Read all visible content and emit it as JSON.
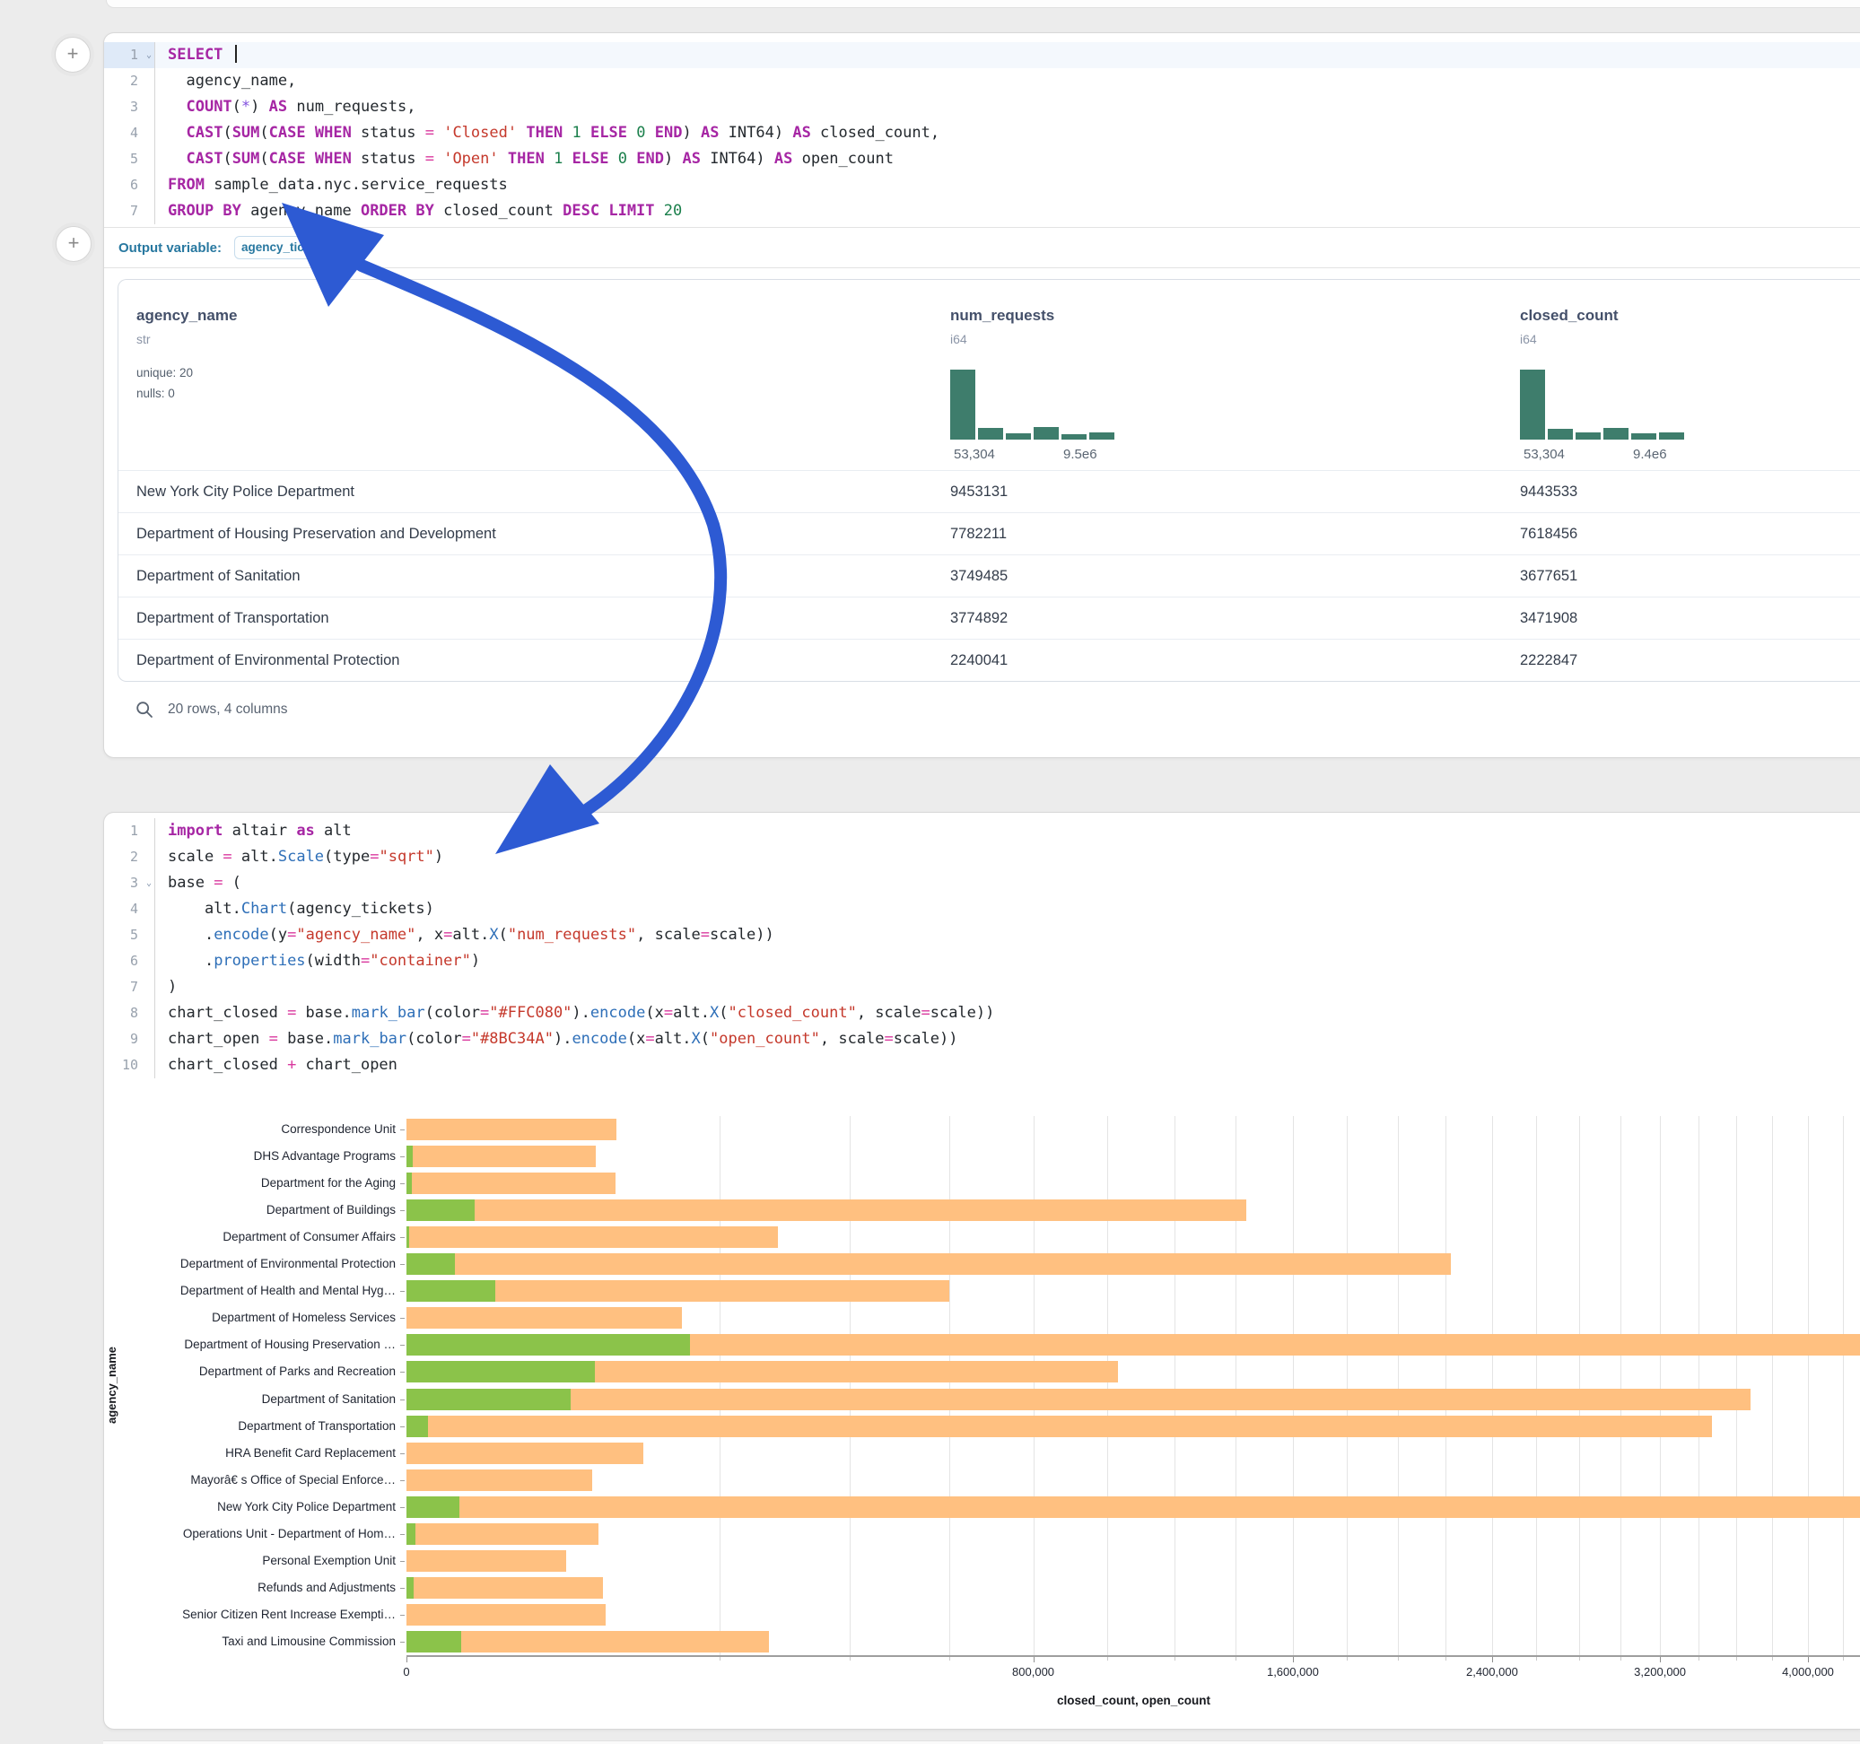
{
  "colors": {
    "arrow_blue": "#2d5ad3",
    "hist_green": "#3e7d6c",
    "closed_bar_orange": "#FFC080",
    "open_bar_green": "#8BC34A"
  },
  "sql_cell": {
    "add_cell_button": "+",
    "lines": [
      {
        "n": "1",
        "chev": true,
        "active": true,
        "caret": true,
        "tokens": [
          [
            "kw",
            "SELECT"
          ],
          [
            "txt",
            " "
          ]
        ]
      },
      {
        "n": "2",
        "tokens": [
          [
            "txt",
            "  agency_name,"
          ]
        ]
      },
      {
        "n": "3",
        "tokens": [
          [
            "txt",
            "  "
          ],
          [
            "kw",
            "COUNT"
          ],
          [
            "txt",
            "("
          ],
          [
            "st",
            "*"
          ],
          [
            "txt",
            ") "
          ],
          [
            "kw",
            "AS"
          ],
          [
            "txt",
            " num_requests,"
          ]
        ]
      },
      {
        "n": "4",
        "tokens": [
          [
            "txt",
            "  "
          ],
          [
            "kw",
            "CAST"
          ],
          [
            "txt",
            "("
          ],
          [
            "kw",
            "SUM"
          ],
          [
            "txt",
            "("
          ],
          [
            "kw",
            "CASE"
          ],
          [
            "txt",
            " "
          ],
          [
            "kw",
            "WHEN"
          ],
          [
            "txt",
            " status "
          ],
          [
            "op",
            "="
          ],
          [
            "txt",
            " "
          ],
          [
            "str",
            "'Closed'"
          ],
          [
            "txt",
            " "
          ],
          [
            "kw",
            "THEN"
          ],
          [
            "txt",
            " "
          ],
          [
            "num",
            "1"
          ],
          [
            "txt",
            " "
          ],
          [
            "kw",
            "ELSE"
          ],
          [
            "txt",
            " "
          ],
          [
            "num",
            "0"
          ],
          [
            "txt",
            " "
          ],
          [
            "kw",
            "END"
          ],
          [
            "txt",
            ") "
          ],
          [
            "kw",
            "AS"
          ],
          [
            "txt",
            " INT64) "
          ],
          [
            "kw",
            "AS"
          ],
          [
            "txt",
            " closed_count,"
          ]
        ]
      },
      {
        "n": "5",
        "tokens": [
          [
            "txt",
            "  "
          ],
          [
            "kw",
            "CAST"
          ],
          [
            "txt",
            "("
          ],
          [
            "kw",
            "SUM"
          ],
          [
            "txt",
            "("
          ],
          [
            "kw",
            "CASE"
          ],
          [
            "txt",
            " "
          ],
          [
            "kw",
            "WHEN"
          ],
          [
            "txt",
            " status "
          ],
          [
            "op",
            "="
          ],
          [
            "txt",
            " "
          ],
          [
            "str",
            "'Open'"
          ],
          [
            "txt",
            " "
          ],
          [
            "kw",
            "THEN"
          ],
          [
            "txt",
            " "
          ],
          [
            "num",
            "1"
          ],
          [
            "txt",
            " "
          ],
          [
            "kw",
            "ELSE"
          ],
          [
            "txt",
            " "
          ],
          [
            "num",
            "0"
          ],
          [
            "txt",
            " "
          ],
          [
            "kw",
            "END"
          ],
          [
            "txt",
            ") "
          ],
          [
            "kw",
            "AS"
          ],
          [
            "txt",
            " INT64) "
          ],
          [
            "kw",
            "AS"
          ],
          [
            "txt",
            " open_count"
          ]
        ]
      },
      {
        "n": "6",
        "tokens": [
          [
            "kw",
            "FROM"
          ],
          [
            "txt",
            " sample_data.nyc.service_requests"
          ]
        ]
      },
      {
        "n": "7",
        "tokens": [
          [
            "kw",
            "GROUP BY"
          ],
          [
            "txt",
            " agency_name "
          ],
          [
            "kw",
            "ORDER BY"
          ],
          [
            "txt",
            " closed_count "
          ],
          [
            "kw",
            "DESC"
          ],
          [
            "txt",
            " "
          ],
          [
            "kw",
            "LIMIT"
          ],
          [
            "txt",
            " "
          ],
          [
            "num",
            "20"
          ]
        ]
      }
    ],
    "output_variable_label": "Output variable:",
    "output_variable_value": "agency_tickets"
  },
  "table": {
    "columns": [
      {
        "name": "agency_name",
        "type": "str",
        "meta": [
          "unique: 20",
          "nulls: 0"
        ]
      },
      {
        "name": "num_requests",
        "type": "i64",
        "hist": {
          "bars": [
            1,
            0.17,
            0.09,
            0.18,
            0.08,
            0.1
          ],
          "labels": [
            "53,304",
            "9.5e6"
          ]
        }
      },
      {
        "name": "closed_count",
        "type": "i64",
        "hist": {
          "bars": [
            1,
            0.16,
            0.1,
            0.17,
            0.09,
            0.1
          ],
          "labels": [
            "53,304",
            "9.4e6"
          ]
        }
      }
    ],
    "rows": [
      [
        "New York City Police Department",
        "9453131",
        "9443533"
      ],
      [
        "Department of Housing Preservation and Development",
        "7782211",
        "7618456"
      ],
      [
        "Department of Sanitation",
        "3749485",
        "3677651"
      ],
      [
        "Department of Transportation",
        "3774892",
        "3471908"
      ],
      [
        "Department of Environmental Protection",
        "2240041",
        "2222847"
      ]
    ],
    "footer": "20 rows, 4 columns"
  },
  "python_cell": {
    "lines": [
      {
        "n": "1",
        "tokens": [
          [
            "kw",
            "import"
          ],
          [
            "txt",
            " altair "
          ],
          [
            "kw",
            "as"
          ],
          [
            "txt",
            " alt"
          ]
        ]
      },
      {
        "n": "2",
        "tokens": [
          [
            "txt",
            "scale "
          ],
          [
            "op",
            "="
          ],
          [
            "txt",
            " alt."
          ],
          [
            "fn",
            "Scale"
          ],
          [
            "txt",
            "(type"
          ],
          [
            "op",
            "="
          ],
          [
            "str",
            "\"sqrt\""
          ],
          [
            "txt",
            ")"
          ]
        ]
      },
      {
        "n": "3",
        "chev": true,
        "tokens": [
          [
            "txt",
            "base "
          ],
          [
            "op",
            "="
          ],
          [
            "txt",
            " ("
          ]
        ]
      },
      {
        "n": "4",
        "tokens": [
          [
            "txt",
            "    alt."
          ],
          [
            "fn",
            "Chart"
          ],
          [
            "txt",
            "(agency_tickets)"
          ]
        ]
      },
      {
        "n": "5",
        "tokens": [
          [
            "txt",
            "    ."
          ],
          [
            "fn",
            "encode"
          ],
          [
            "txt",
            "(y"
          ],
          [
            "op",
            "="
          ],
          [
            "str",
            "\"agency_name\""
          ],
          [
            "txt",
            ", x"
          ],
          [
            "op",
            "="
          ],
          [
            "txt",
            "alt."
          ],
          [
            "fn",
            "X"
          ],
          [
            "txt",
            "("
          ],
          [
            "str",
            "\"num_requests\""
          ],
          [
            "txt",
            ", scale"
          ],
          [
            "op",
            "="
          ],
          [
            "txt",
            "scale))"
          ]
        ]
      },
      {
        "n": "6",
        "tokens": [
          [
            "txt",
            "    ."
          ],
          [
            "fn",
            "properties"
          ],
          [
            "txt",
            "(width"
          ],
          [
            "op",
            "="
          ],
          [
            "str",
            "\"container\""
          ],
          [
            "txt",
            ")"
          ]
        ]
      },
      {
        "n": "7",
        "tokens": [
          [
            "txt",
            ")"
          ]
        ]
      },
      {
        "n": "8",
        "tokens": [
          [
            "txt",
            "chart_closed "
          ],
          [
            "op",
            "="
          ],
          [
            "txt",
            " base."
          ],
          [
            "fn",
            "mark_bar"
          ],
          [
            "txt",
            "(color"
          ],
          [
            "op",
            "="
          ],
          [
            "str",
            "\"#FFC080\""
          ],
          [
            "txt",
            ")."
          ],
          [
            "fn",
            "encode"
          ],
          [
            "txt",
            "(x"
          ],
          [
            "op",
            "="
          ],
          [
            "txt",
            "alt."
          ],
          [
            "fn",
            "X"
          ],
          [
            "txt",
            "("
          ],
          [
            "str",
            "\"closed_count\""
          ],
          [
            "txt",
            ", scale"
          ],
          [
            "op",
            "="
          ],
          [
            "txt",
            "scale))"
          ]
        ]
      },
      {
        "n": "9",
        "tokens": [
          [
            "txt",
            "chart_open "
          ],
          [
            "op",
            "="
          ],
          [
            "txt",
            " base."
          ],
          [
            "fn",
            "mark_bar"
          ],
          [
            "txt",
            "(color"
          ],
          [
            "op",
            "="
          ],
          [
            "str",
            "\"#8BC34A\""
          ],
          [
            "txt",
            ")."
          ],
          [
            "fn",
            "encode"
          ],
          [
            "txt",
            "(x"
          ],
          [
            "op",
            "="
          ],
          [
            "txt",
            "alt."
          ],
          [
            "fn",
            "X"
          ],
          [
            "txt",
            "("
          ],
          [
            "str",
            "\"open_count\""
          ],
          [
            "txt",
            ", scale"
          ],
          [
            "op",
            "="
          ],
          [
            "txt",
            "scale))"
          ]
        ]
      },
      {
        "n": "10",
        "tokens": [
          [
            "txt",
            "chart_closed "
          ],
          [
            "op",
            "+"
          ],
          [
            "txt",
            " chart_open"
          ]
        ]
      }
    ]
  },
  "chart_data": {
    "type": "bar",
    "orientation": "horizontal",
    "x_scale": "sqrt",
    "xlabel": "closed_count, open_count",
    "ylabel": "agency_name",
    "x_ticks": [
      "0",
      "800,000",
      "1,600,000",
      "2,400,000",
      "3,200,000",
      "4,000,000"
    ],
    "x_tick_values": [
      0,
      800000,
      1600000,
      2400000,
      3200000,
      4000000
    ],
    "grid_interval": 200000,
    "x_visible_max": 4310000,
    "legend": "none",
    "categories": [
      "Correspondence Unit",
      "DHS Advantage Programs",
      "Department for the Aging",
      "Department of Buildings",
      "Department of Consumer Affairs",
      "Department of Environmental Protection",
      "Department of Health and Mental Hyg…",
      "Department of Homeless Services",
      "Department of Housing Preservation …",
      "Department of Parks and Recreation",
      "Department of Sanitation",
      "Department of Transportation",
      "HRA Benefit Card Replacement",
      "Mayorâ€ s Office of Special Enforce…",
      "New York City Police Department",
      "Operations Unit - Department of Hom…",
      "Personal Exemption Unit",
      "Refunds and Adjustments",
      "Senior Citizen Rent Increase Exempti…",
      "Taxi and Limousine Commission"
    ],
    "series": [
      {
        "name": "closed_count",
        "color": "#FFC080",
        "values": [
          90000,
          73000,
          89000,
          1435000,
          281000,
          2222847,
          600000,
          155000,
          7618456,
          1030000,
          3677651,
          3471908,
          114000,
          70000,
          9443533,
          75000,
          52000,
          78500,
          81000,
          267000
        ]
      },
      {
        "name": "open_count",
        "color": "#8BC34A",
        "values": [
          0,
          80,
          60,
          9400,
          15,
          4800,
          16000,
          0,
          164000,
          72000,
          55000,
          950,
          0,
          0,
          5700,
          160,
          0,
          100,
          0,
          6100
        ]
      }
    ],
    "note": "open_count bars layered over closed_count bars, both starting at zero; bars wider than the viewport are clipped at the right edge"
  }
}
